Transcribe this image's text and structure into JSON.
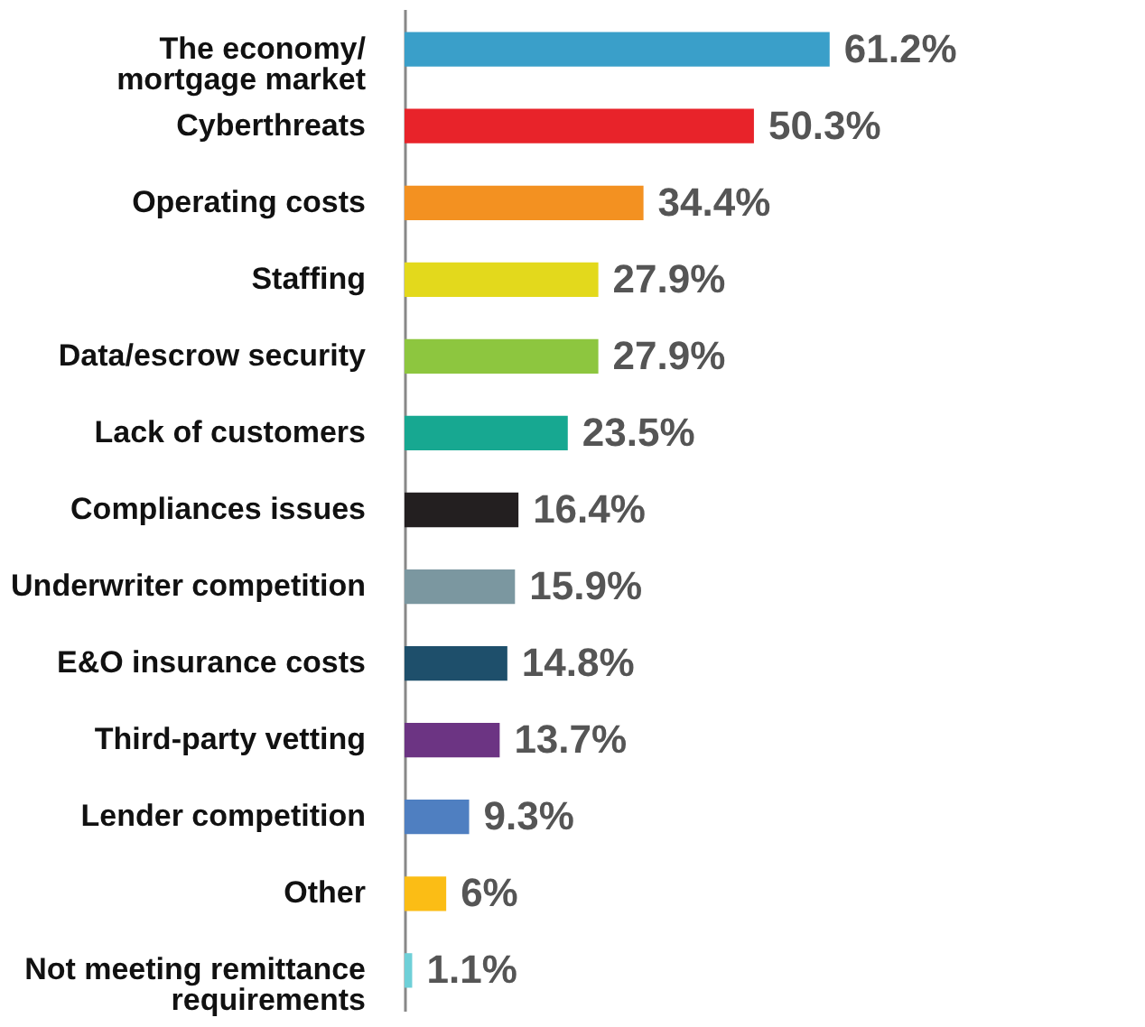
{
  "chart_data": {
    "type": "bar",
    "orientation": "horizontal",
    "categories": [
      "The economy/\nmortgage market",
      "Cyberthreats",
      "Operating costs",
      "Staffing",
      "Data/escrow security",
      "Lack of customers",
      "Compliances issues",
      "Underwriter competition",
      "E&O insurance costs",
      "Third-party vetting",
      "Lender competition",
      "Other",
      "Not meeting remittance\nrequirements"
    ],
    "values": [
      61.2,
      50.3,
      34.4,
      27.9,
      27.9,
      23.5,
      16.4,
      15.9,
      14.8,
      13.7,
      9.3,
      6,
      1.1
    ],
    "colors": [
      "#3a9fc9",
      "#e8232a",
      "#f39121",
      "#e3d91c",
      "#8dc63f",
      "#17a891",
      "#231f20",
      "#7b97a0",
      "#1e4f6b",
      "#6c3483",
      "#4f7fc1",
      "#fbbd15",
      "#6fd0d8"
    ],
    "value_labels": [
      "61.2%",
      "50.3%",
      "34.4%",
      "27.9%",
      "27.9%",
      "23.5%",
      "16.4%",
      "15.9%",
      "14.8%",
      "13.7%",
      "9.3%",
      "6%",
      "1.1%"
    ]
  }
}
